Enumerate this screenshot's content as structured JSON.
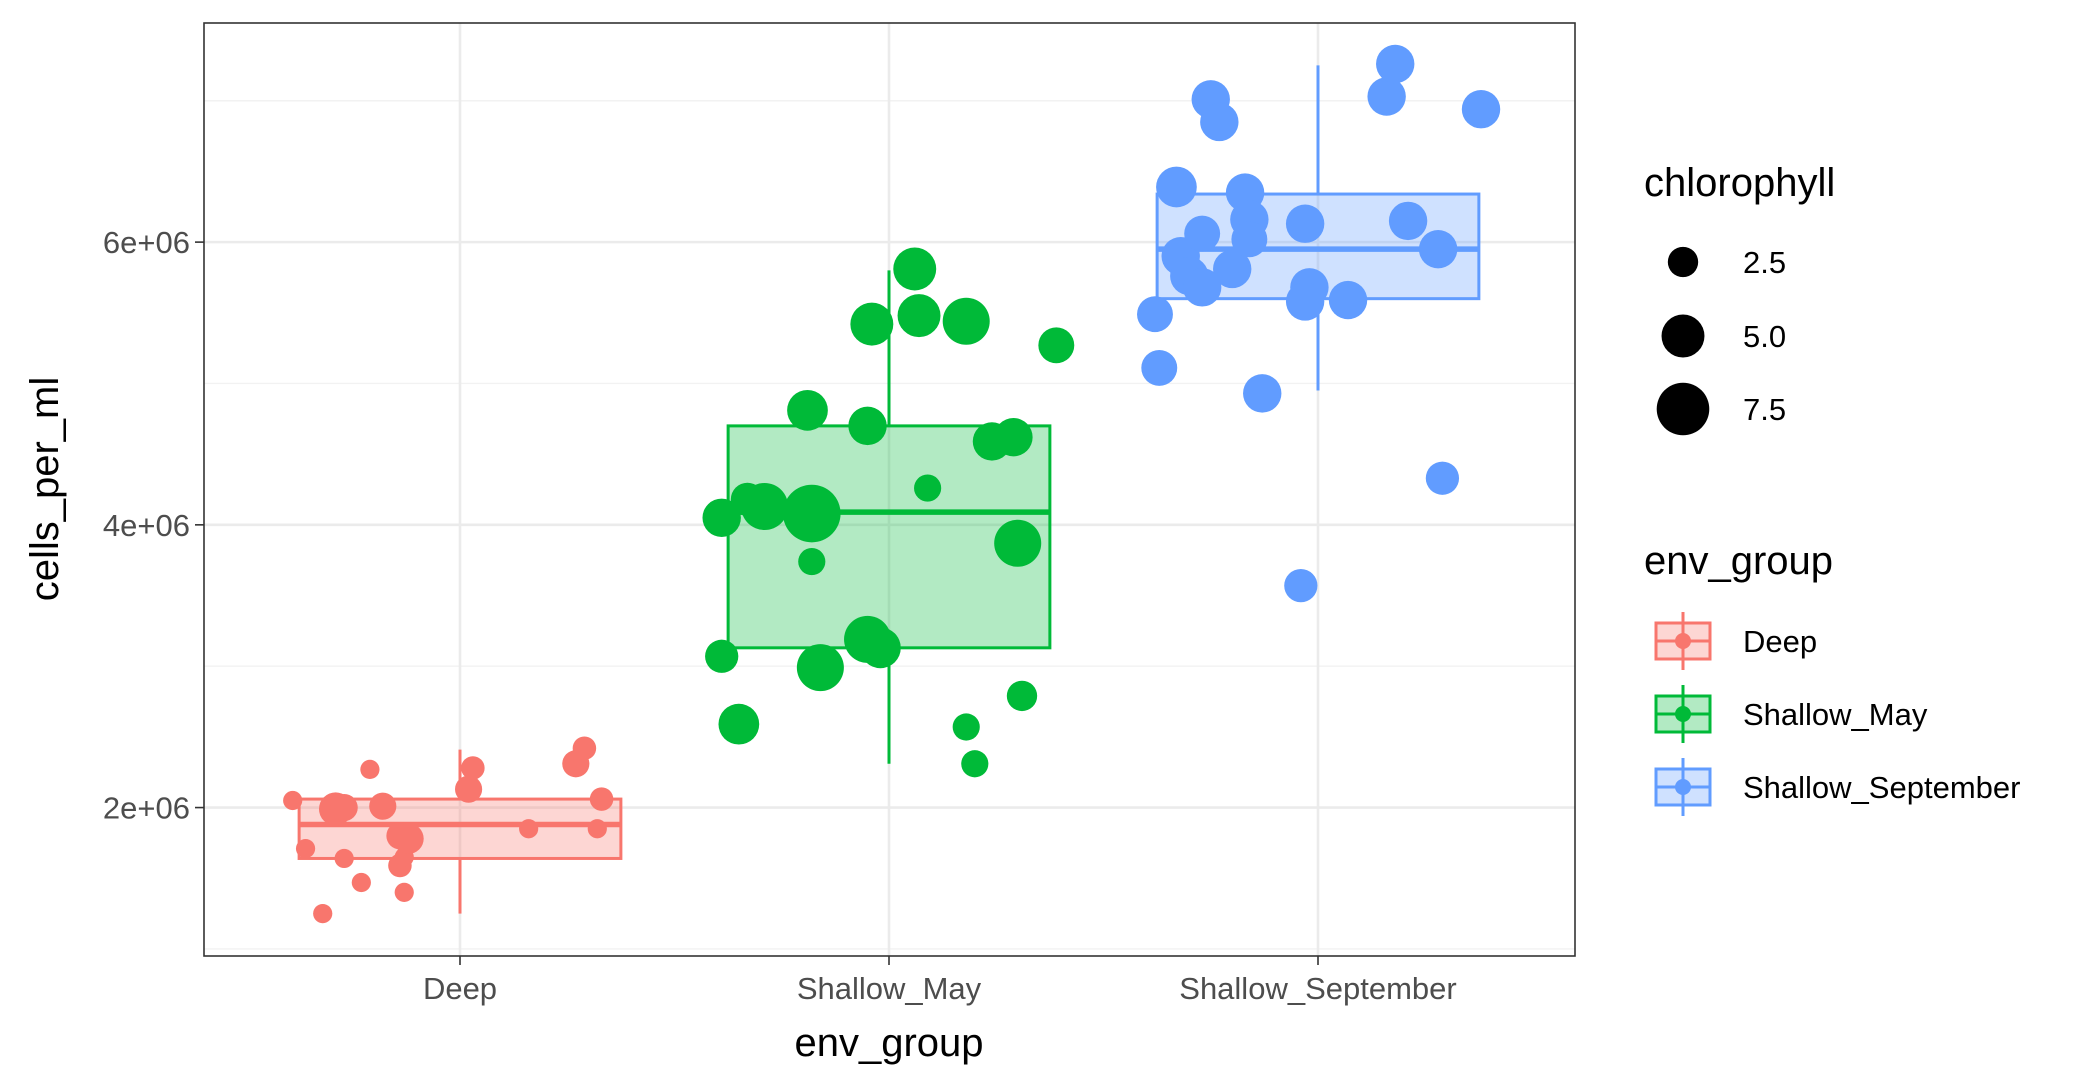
{
  "chart_data": {
    "type": "boxplot",
    "xlabel": "env_group",
    "ylabel": "cells_per_ml",
    "categories": [
      "Deep",
      "Shallow_May",
      "Shallow_September"
    ],
    "ylim": [
      950000,
      7550000
    ],
    "yticks": [
      2000000,
      4000000,
      6000000
    ],
    "ytick_labels": [
      "2e+06",
      "4e+06",
      "6e+06"
    ],
    "grid": true,
    "colors": {
      "Deep": "#F8766D",
      "Shallow_May": "#00BA38",
      "Shallow_September": "#619CFF"
    },
    "boxes": [
      {
        "group": "Deep",
        "lower_whisker": 1250000,
        "q1": 1640000,
        "median": 1880000,
        "q3": 2060000,
        "upper_whisker": 2410000
      },
      {
        "group": "Shallow_May",
        "lower_whisker": 2310000,
        "q1": 3130000,
        "median": 4090000,
        "q3": 4700000,
        "upper_whisker": 5800000
      },
      {
        "group": "Shallow_September",
        "lower_whisker": 4950000,
        "q1": 5600000,
        "median": 5950000,
        "q3": 6340000,
        "upper_whisker": 7250000
      }
    ],
    "points": [
      {
        "group": "Deep",
        "jitter": -0.39,
        "y": 2050000,
        "chlorophyll": 1.0
      },
      {
        "group": "Deep",
        "jitter": -0.36,
        "y": 1710000,
        "chlorophyll": 1.0
      },
      {
        "group": "Deep",
        "jitter": -0.32,
        "y": 1250000,
        "chlorophyll": 1.0
      },
      {
        "group": "Deep",
        "jitter": -0.29,
        "y": 1990000,
        "chlorophyll": 3.0
      },
      {
        "group": "Deep",
        "jitter": -0.27,
        "y": 2000000,
        "chlorophyll": 2.0
      },
      {
        "group": "Deep",
        "jitter": -0.27,
        "y": 1640000,
        "chlorophyll": 1.0
      },
      {
        "group": "Deep",
        "jitter": -0.23,
        "y": 1470000,
        "chlorophyll": 1.0
      },
      {
        "group": "Deep",
        "jitter": -0.21,
        "y": 2270000,
        "chlorophyll": 1.0
      },
      {
        "group": "Deep",
        "jitter": -0.18,
        "y": 2010000,
        "chlorophyll": 2.0
      },
      {
        "group": "Deep",
        "jitter": -0.14,
        "y": 1800000,
        "chlorophyll": 2.0
      },
      {
        "group": "Deep",
        "jitter": -0.14,
        "y": 1590000,
        "chlorophyll": 1.5
      },
      {
        "group": "Deep",
        "jitter": -0.13,
        "y": 1650000,
        "chlorophyll": 1.0
      },
      {
        "group": "Deep",
        "jitter": -0.13,
        "y": 1400000,
        "chlorophyll": 1.0
      },
      {
        "group": "Deep",
        "jitter": -0.12,
        "y": 1780000,
        "chlorophyll": 2.5
      },
      {
        "group": "Deep",
        "jitter": 0.02,
        "y": 2130000,
        "chlorophyll": 2.0
      },
      {
        "group": "Deep",
        "jitter": 0.03,
        "y": 2280000,
        "chlorophyll": 1.5
      },
      {
        "group": "Deep",
        "jitter": 0.16,
        "y": 1850000,
        "chlorophyll": 1.0
      },
      {
        "group": "Deep",
        "jitter": 0.27,
        "y": 2310000,
        "chlorophyll": 2.0
      },
      {
        "group": "Deep",
        "jitter": 0.29,
        "y": 2420000,
        "chlorophyll": 1.5
      },
      {
        "group": "Deep",
        "jitter": 0.33,
        "y": 2060000,
        "chlorophyll": 1.5
      },
      {
        "group": "Deep",
        "jitter": 0.32,
        "y": 1850000,
        "chlorophyll": 1.0
      },
      {
        "group": "Shallow_May",
        "jitter": -0.39,
        "y": 4050000,
        "chlorophyll": 4.0
      },
      {
        "group": "Shallow_May",
        "jitter": -0.39,
        "y": 3070000,
        "chlorophyll": 3.0
      },
      {
        "group": "Shallow_May",
        "jitter": -0.35,
        "y": 2590000,
        "chlorophyll": 4.5
      },
      {
        "group": "Shallow_May",
        "jitter": -0.33,
        "y": 4180000,
        "chlorophyll": 3.0
      },
      {
        "group": "Shallow_May",
        "jitter": -0.29,
        "y": 4130000,
        "chlorophyll": 6.0
      },
      {
        "group": "Shallow_May",
        "jitter": -0.19,
        "y": 4810000,
        "chlorophyll": 4.5
      },
      {
        "group": "Shallow_May",
        "jitter": -0.18,
        "y": 4080000,
        "chlorophyll": 9.0
      },
      {
        "group": "Shallow_May",
        "jitter": -0.18,
        "y": 3740000,
        "chlorophyll": 2.0
      },
      {
        "group": "Shallow_May",
        "jitter": -0.16,
        "y": 2990000,
        "chlorophyll": 6.0
      },
      {
        "group": "Shallow_May",
        "jitter": -0.05,
        "y": 4700000,
        "chlorophyll": 4.0
      },
      {
        "group": "Shallow_May",
        "jitter": -0.04,
        "y": 5420000,
        "chlorophyll": 5.0
      },
      {
        "group": "Shallow_May",
        "jitter": -0.05,
        "y": 3190000,
        "chlorophyll": 6.0
      },
      {
        "group": "Shallow_May",
        "jitter": -0.02,
        "y": 3130000,
        "chlorophyll": 4.5
      },
      {
        "group": "Shallow_May",
        "jitter": 0.06,
        "y": 5810000,
        "chlorophyll": 5.0
      },
      {
        "group": "Shallow_May",
        "jitter": 0.07,
        "y": 5480000,
        "chlorophyll": 5.0
      },
      {
        "group": "Shallow_May",
        "jitter": 0.09,
        "y": 4260000,
        "chlorophyll": 2.0
      },
      {
        "group": "Shallow_May",
        "jitter": 0.18,
        "y": 5440000,
        "chlorophyll": 6.0
      },
      {
        "group": "Shallow_May",
        "jitter": 0.18,
        "y": 2570000,
        "chlorophyll": 2.0
      },
      {
        "group": "Shallow_May",
        "jitter": 0.2,
        "y": 2310000,
        "chlorophyll": 2.0
      },
      {
        "group": "Shallow_May",
        "jitter": 0.24,
        "y": 4590000,
        "chlorophyll": 4.0
      },
      {
        "group": "Shallow_May",
        "jitter": 0.29,
        "y": 4620000,
        "chlorophyll": 4.0
      },
      {
        "group": "Shallow_May",
        "jitter": 0.3,
        "y": 3870000,
        "chlorophyll": 6.0
      },
      {
        "group": "Shallow_May",
        "jitter": 0.31,
        "y": 2790000,
        "chlorophyll": 2.5
      },
      {
        "group": "Shallow_May",
        "jitter": 0.39,
        "y": 5270000,
        "chlorophyll": 3.5
      },
      {
        "group": "Shallow_September",
        "jitter": -0.38,
        "y": 5490000,
        "chlorophyll": 3.5
      },
      {
        "group": "Shallow_September",
        "jitter": -0.37,
        "y": 5110000,
        "chlorophyll": 3.5
      },
      {
        "group": "Shallow_September",
        "jitter": -0.33,
        "y": 6390000,
        "chlorophyll": 4.5
      },
      {
        "group": "Shallow_September",
        "jitter": -0.32,
        "y": 5900000,
        "chlorophyll": 4.0
      },
      {
        "group": "Shallow_September",
        "jitter": -0.3,
        "y": 5760000,
        "chlorophyll": 4.0
      },
      {
        "group": "Shallow_September",
        "jitter": -0.27,
        "y": 6060000,
        "chlorophyll": 3.5
      },
      {
        "group": "Shallow_September",
        "jitter": -0.27,
        "y": 5680000,
        "chlorophyll": 4.0
      },
      {
        "group": "Shallow_September",
        "jitter": -0.25,
        "y": 7010000,
        "chlorophyll": 4.0
      },
      {
        "group": "Shallow_September",
        "jitter": -0.23,
        "y": 6850000,
        "chlorophyll": 4.0
      },
      {
        "group": "Shallow_September",
        "jitter": -0.2,
        "y": 5810000,
        "chlorophyll": 4.0
      },
      {
        "group": "Shallow_September",
        "jitter": -0.17,
        "y": 6350000,
        "chlorophyll": 4.0
      },
      {
        "group": "Shallow_September",
        "jitter": -0.16,
        "y": 6160000,
        "chlorophyll": 4.0
      },
      {
        "group": "Shallow_September",
        "jitter": -0.16,
        "y": 6020000,
        "chlorophyll": 3.5
      },
      {
        "group": "Shallow_September",
        "jitter": -0.13,
        "y": 4930000,
        "chlorophyll": 4.0
      },
      {
        "group": "Shallow_September",
        "jitter": -0.03,
        "y": 6130000,
        "chlorophyll": 4.0
      },
      {
        "group": "Shallow_September",
        "jitter": -0.02,
        "y": 5680000,
        "chlorophyll": 4.0
      },
      {
        "group": "Shallow_September",
        "jitter": -0.03,
        "y": 5580000,
        "chlorophyll": 4.0
      },
      {
        "group": "Shallow_September",
        "jitter": -0.04,
        "y": 3570000,
        "chlorophyll": 3.0
      },
      {
        "group": "Shallow_September",
        "jitter": 0.07,
        "y": 5590000,
        "chlorophyll": 4.0
      },
      {
        "group": "Shallow_September",
        "jitter": 0.16,
        "y": 7030000,
        "chlorophyll": 4.0
      },
      {
        "group": "Shallow_September",
        "jitter": 0.18,
        "y": 7260000,
        "chlorophyll": 4.0
      },
      {
        "group": "Shallow_September",
        "jitter": 0.21,
        "y": 6150000,
        "chlorophyll": 4.0
      },
      {
        "group": "Shallow_September",
        "jitter": 0.28,
        "y": 5950000,
        "chlorophyll": 4.0
      },
      {
        "group": "Shallow_September",
        "jitter": 0.29,
        "y": 4330000,
        "chlorophyll": 3.0
      },
      {
        "group": "Shallow_September",
        "jitter": 0.38,
        "y": 6940000,
        "chlorophyll": 4.0
      }
    ],
    "legend": {
      "position": "right",
      "size": {
        "title": "chlorophyll",
        "entries": [
          {
            "label": "2.5",
            "value": 2.5
          },
          {
            "label": "5.0",
            "value": 5.0
          },
          {
            "label": "7.5",
            "value": 7.5
          }
        ]
      },
      "color": {
        "title": "env_group",
        "entries": [
          {
            "label": "Deep",
            "color": "#F8766D"
          },
          {
            "label": "Shallow_May",
            "color": "#00BA38"
          },
          {
            "label": "Shallow_September",
            "color": "#619CFF"
          }
        ]
      }
    }
  }
}
